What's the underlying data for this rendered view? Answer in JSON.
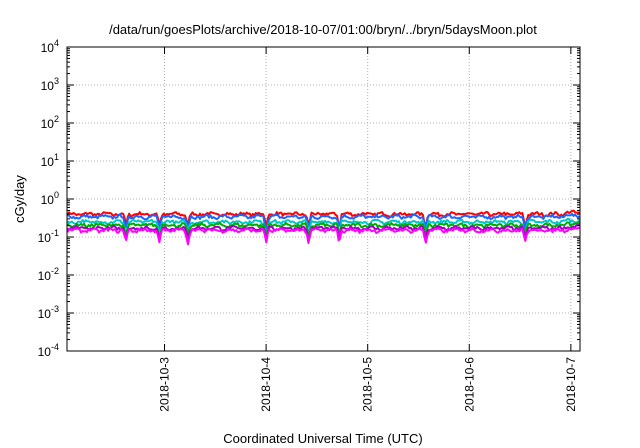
{
  "chart_data": {
    "type": "line",
    "title": "/data/run/goesPlots/archive/2018-10-07/01:00/bryn/../bryn/5daysMoon.plot",
    "xlabel": "Coordinated Universal Time (UTC)",
    "ylabel": "cGy/day",
    "yscale": "log",
    "ylim": [
      0.0001,
      10000
    ],
    "xlim": [
      2.04,
      7.09
    ],
    "y_ticks": [
      {
        "base": "10",
        "exp": "-4"
      },
      {
        "base": "10",
        "exp": "-3"
      },
      {
        "base": "10",
        "exp": "-2"
      },
      {
        "base": "10",
        "exp": "-1"
      },
      {
        "base": "10",
        "exp": "0"
      },
      {
        "base": "10",
        "exp": "1"
      },
      {
        "base": "10",
        "exp": "2"
      },
      {
        "base": "10",
        "exp": "3"
      },
      {
        "base": "10",
        "exp": "4"
      }
    ],
    "x_ticks": [
      {
        "day": 3,
        "label": "2018-10-3"
      },
      {
        "day": 4,
        "label": "2018-10-4"
      },
      {
        "day": 5,
        "label": "2018-10-5"
      },
      {
        "day": 6,
        "label": "2018-10-6"
      },
      {
        "day": 7,
        "label": "2018-10-7"
      }
    ],
    "grid": true,
    "dip_days": [
      2.62,
      2.95,
      3.23,
      4.0,
      4.42,
      4.72,
      5.57,
      6.55
    ],
    "series": [
      {
        "color": "#ff0000",
        "base": 0.4
      },
      {
        "color": "#1e64ff",
        "base": 0.34
      },
      {
        "color": "#00c8c8",
        "base": 0.25
      },
      {
        "color": "#00aa00",
        "base": 0.205
      },
      {
        "color": "#a000c8",
        "base": 0.17
      },
      {
        "color": "#ff00ff",
        "base": 0.15
      }
    ]
  }
}
